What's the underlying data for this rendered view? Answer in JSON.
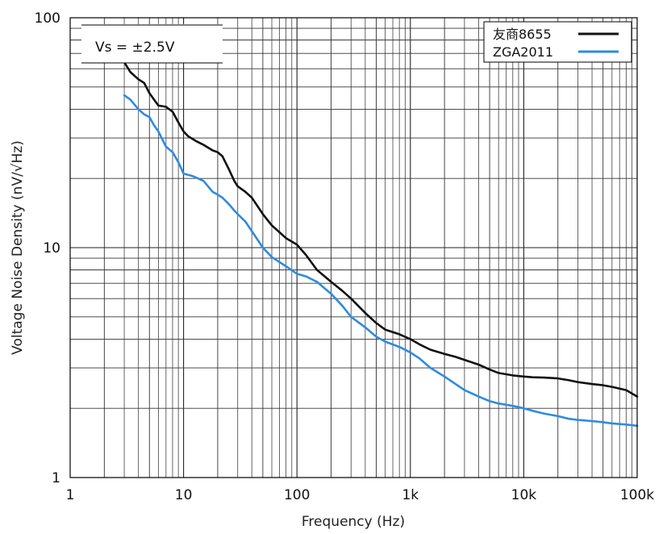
{
  "chart_data": {
    "type": "line",
    "xlabel": "Frequency (Hz)",
    "ylabel": "Voltage Noise Density (nV/√Hz)",
    "x_scale": "log",
    "y_scale": "log",
    "xlim": [
      1,
      100000
    ],
    "ylim": [
      1,
      100
    ],
    "x_ticks": [
      {
        "value": 1,
        "label": "1"
      },
      {
        "value": 10,
        "label": "10"
      },
      {
        "value": 100,
        "label": "100"
      },
      {
        "value": 1000,
        "label": "1k"
      },
      {
        "value": 10000,
        "label": "10k"
      },
      {
        "value": 100000,
        "label": "100k"
      }
    ],
    "y_ticks": [
      {
        "value": 1,
        "label": "1"
      },
      {
        "value": 10,
        "label": "10"
      },
      {
        "value": 100,
        "label": "100"
      }
    ],
    "grid": true,
    "legend_position": "top-right",
    "annotation": "Vs = ±2.5V",
    "series": [
      {
        "name": "友商8655",
        "color": "#111111",
        "x": [
          3.0,
          3.4,
          4.0,
          4.5,
          5.0,
          5.5,
          6.0,
          7.0,
          8.0,
          9.0,
          10,
          11,
          13,
          15,
          18,
          20,
          22,
          25,
          28,
          30,
          35,
          40,
          50,
          60,
          80,
          100,
          120,
          150,
          200,
          250,
          300,
          400,
          500,
          600,
          800,
          1000,
          1200,
          1500,
          2000,
          2500,
          3000,
          4000,
          5000,
          6000,
          8000,
          10000,
          12000,
          15000,
          20000,
          25000,
          30000,
          40000,
          50000,
          60000,
          80000,
          100000
        ],
        "y": [
          64,
          58,
          54,
          52,
          47,
          44,
          41.5,
          41,
          39,
          35,
          32,
          30.5,
          29,
          28,
          26.5,
          26,
          25,
          22,
          19.5,
          18.5,
          17.5,
          16.5,
          14,
          12.5,
          11,
          10.3,
          9.3,
          8.0,
          7.1,
          6.5,
          6.0,
          5.2,
          4.7,
          4.4,
          4.2,
          4.0,
          3.8,
          3.6,
          3.45,
          3.35,
          3.25,
          3.1,
          2.95,
          2.85,
          2.78,
          2.75,
          2.73,
          2.72,
          2.7,
          2.65,
          2.6,
          2.55,
          2.52,
          2.48,
          2.4,
          2.25
        ]
      },
      {
        "name": "ZGA2011",
        "color": "#2e8be0",
        "x": [
          3.0,
          3.4,
          4.0,
          4.5,
          5.0,
          5.5,
          6.0,
          7.0,
          8.0,
          9.0,
          10,
          12,
          15,
          18,
          20,
          22,
          25,
          28,
          30,
          35,
          40,
          50,
          60,
          80,
          100,
          120,
          150,
          200,
          250,
          300,
          400,
          500,
          600,
          800,
          1000,
          1200,
          1500,
          2000,
          2500,
          3000,
          4000,
          5000,
          6000,
          8000,
          10000,
          12000,
          15000,
          20000,
          25000,
          30000,
          40000,
          50000,
          60000,
          80000,
          100000
        ],
        "y": [
          46,
          44,
          40,
          38,
          37,
          34,
          32,
          27.5,
          26,
          23.5,
          21,
          20.5,
          19.5,
          17.5,
          17,
          16.5,
          15.5,
          14.5,
          14,
          13,
          11.8,
          10,
          9.1,
          8.3,
          7.7,
          7.5,
          7.1,
          6.3,
          5.6,
          5.0,
          4.5,
          4.1,
          3.9,
          3.7,
          3.5,
          3.3,
          3.0,
          2.75,
          2.55,
          2.4,
          2.25,
          2.15,
          2.1,
          2.05,
          2.0,
          1.95,
          1.9,
          1.85,
          1.8,
          1.78,
          1.76,
          1.74,
          1.72,
          1.7,
          1.68
        ]
      }
    ]
  }
}
